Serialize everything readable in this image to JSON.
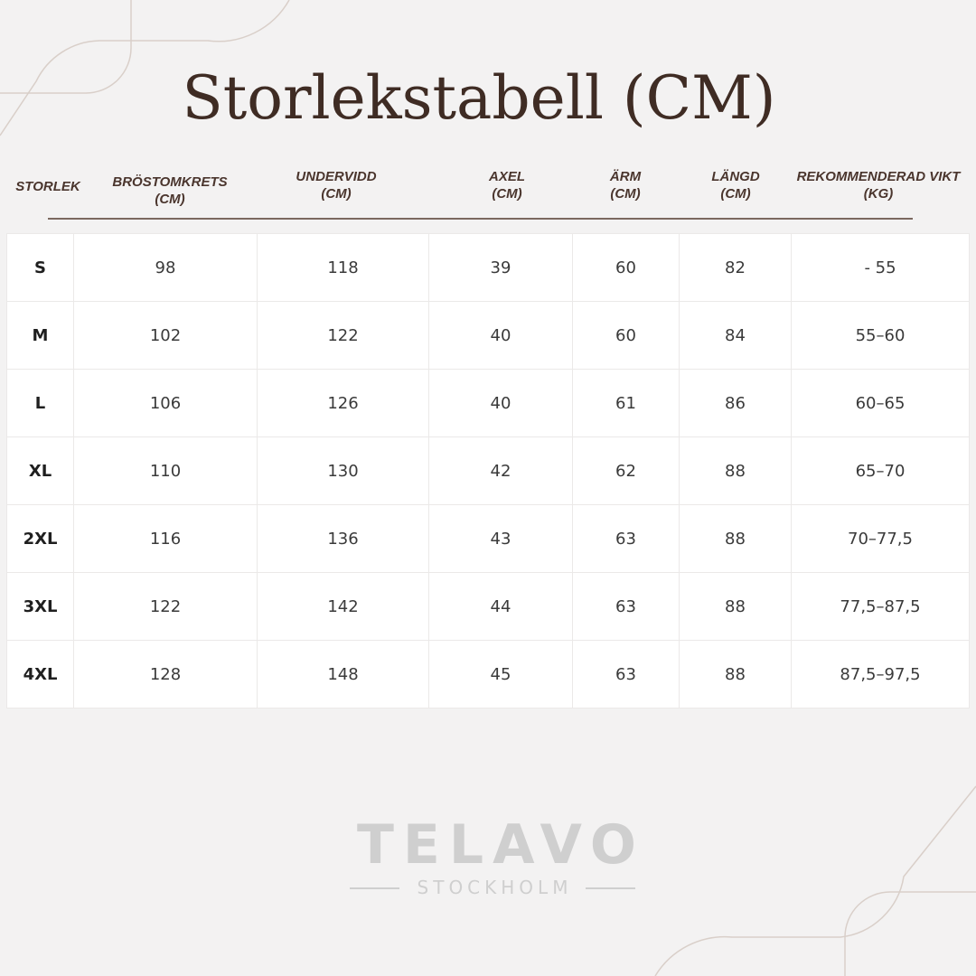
{
  "title": "Storlekstabell (CM)",
  "headers": [
    {
      "line1": "STORLEK",
      "line2": ""
    },
    {
      "line1": "BRÖSTOMKRETS",
      "line2": "(CM)"
    },
    {
      "line1": "UNDERVIDD",
      "line2": "(CM)"
    },
    {
      "line1": "AXEL",
      "line2": "(CM)"
    },
    {
      "line1": "ÄRM",
      "line2": "(CM)"
    },
    {
      "line1": "LÄNGD",
      "line2": "(CM)"
    },
    {
      "line1": "REKOMMENDERAD VIKT",
      "line2": "(KG)"
    }
  ],
  "rows": [
    [
      "S",
      "98",
      "118",
      "39",
      "60",
      "82",
      "- 55"
    ],
    [
      "M",
      "102",
      "122",
      "40",
      "60",
      "84",
      "55–60"
    ],
    [
      "L",
      "106",
      "126",
      "40",
      "61",
      "86",
      "60–65"
    ],
    [
      "XL",
      "110",
      "130",
      "42",
      "62",
      "88",
      "65–70"
    ],
    [
      "2XL",
      "116",
      "136",
      "43",
      "63",
      "88",
      "70–77,5"
    ],
    [
      "3XL",
      "122",
      "142",
      "44",
      "63",
      "88",
      "77,5–87,5"
    ],
    [
      "4XL",
      "128",
      "148",
      "45",
      "63",
      "88",
      "87,5–97,5"
    ]
  ],
  "logo": {
    "brand": "TELAVO",
    "sub": "STOCKHOLM"
  },
  "colors": {
    "background": "#f3f2f2",
    "title": "#3f2c24",
    "logo": "#cfcfcf",
    "decor": "#d9cfc9"
  }
}
